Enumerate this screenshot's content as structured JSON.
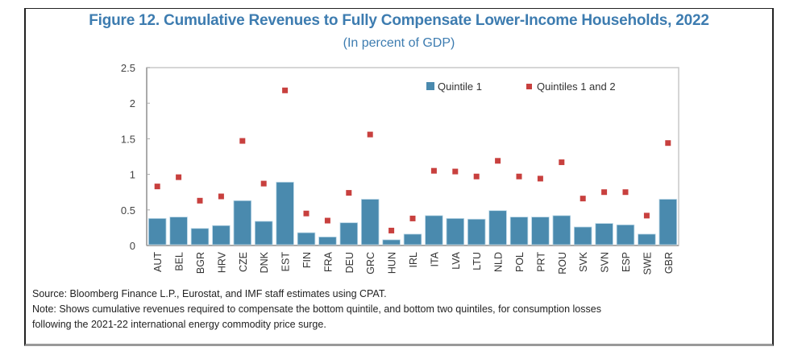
{
  "figure": {
    "title": "Figure 12. Cumulative Revenues to Fully Compensate Lower-Income Households, 2022",
    "subtitle": "(In percent of GDP)",
    "source": "Source: Bloomberg Finance L.P., Eurostat, and IMF staff estimates using CPAT.",
    "note_line1": "Note: Shows cumulative revenues required to compensate the bottom quintile, and bottom two quintiles, for consumption losses",
    "note_line2": "following the 2021-22 international energy commodity price surge."
  },
  "colors": {
    "bar": "#4a8aae",
    "dot": "#c8403e",
    "title": "#3d7cb0",
    "axis": "#bbbbbb"
  },
  "chart_data": {
    "type": "bar",
    "title": "Figure 12. Cumulative Revenues to Fully Compensate Lower-Income Households, 2022",
    "subtitle": "(In percent of GDP)",
    "xlabel": "",
    "ylabel": "",
    "ylim": [
      0,
      2.5
    ],
    "yticks": [
      0,
      0.5,
      1,
      1.5,
      2,
      2.5
    ],
    "ytick_labels": [
      "0",
      "0.5",
      "1",
      "1.5",
      "2",
      "2.5"
    ],
    "grid": false,
    "legend_position": "top-right",
    "categories": [
      "AUT",
      "BEL",
      "BGR",
      "HRV",
      "CZE",
      "DNK",
      "EST",
      "FIN",
      "FRA",
      "DEU",
      "GRC",
      "HUN",
      "IRL",
      "ITA",
      "LVA",
      "LTU",
      "NLD",
      "POL",
      "PRT",
      "ROU",
      "SVK",
      "SVN",
      "ESP",
      "SWE",
      "GBR"
    ],
    "series": [
      {
        "name": "Quintile 1",
        "type": "bar",
        "values": [
          0.38,
          0.4,
          0.24,
          0.28,
          0.63,
          0.34,
          0.89,
          0.18,
          0.12,
          0.32,
          0.65,
          0.08,
          0.16,
          0.42,
          0.38,
          0.37,
          0.49,
          0.4,
          0.4,
          0.42,
          0.26,
          0.31,
          0.29,
          0.16,
          0.65
        ]
      },
      {
        "name": "Quintiles 1 and 2",
        "type": "scatter",
        "values": [
          0.83,
          0.96,
          0.63,
          0.69,
          1.47,
          0.87,
          2.18,
          0.45,
          0.35,
          0.74,
          1.56,
          0.21,
          0.38,
          1.05,
          1.04,
          0.97,
          1.19,
          0.97,
          0.94,
          1.17,
          0.66,
          0.75,
          0.75,
          0.42,
          1.44
        ]
      }
    ]
  }
}
